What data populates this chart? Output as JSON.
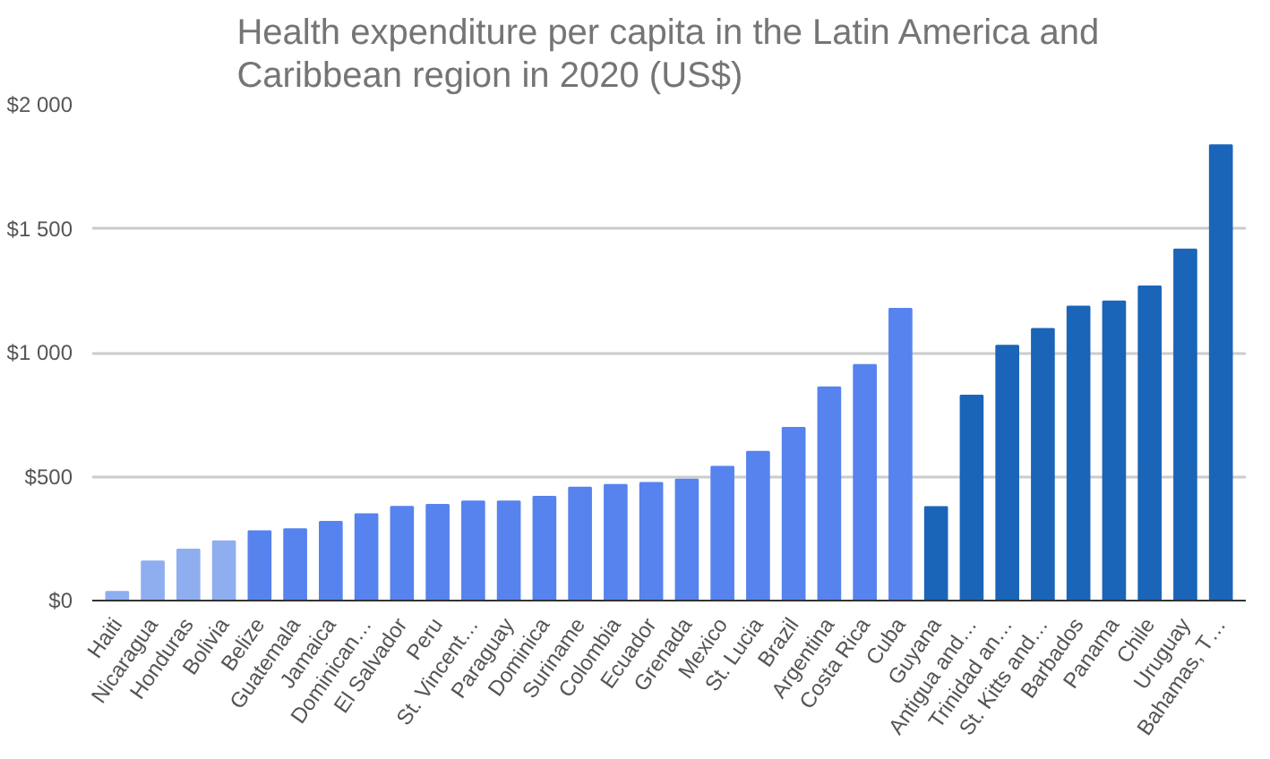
{
  "chart_data": {
    "type": "bar",
    "title": "Health expenditure per capita in the Latin America and Caribbean region in 2020 (US$)",
    "categories": [
      "Haiti",
      "Nicaragua",
      "Honduras",
      "Bolivia",
      "Belize",
      "Guatemala",
      "Jamaica",
      "Dominican…",
      "El Salvador",
      "Peru",
      "St. Vincent…",
      "Paraguay",
      "Dominica",
      "Suriname",
      "Colombia",
      "Ecuador",
      "Grenada",
      "Mexico",
      "St. Lucia",
      "Brazil",
      "Argentina",
      "Costa Rica",
      "Cuba",
      "Guyana",
      "Antigua and…",
      "Trinidad an…",
      "St. Kitts and…",
      "Barbados",
      "Panama",
      "Chile",
      "Uruguay",
      "Bahamas, T…"
    ],
    "values": [
      35,
      158,
      206,
      239,
      280,
      288,
      318,
      348,
      378,
      386,
      400,
      400,
      419,
      456,
      467,
      475,
      488,
      540,
      600,
      697,
      860,
      950,
      1177,
      377,
      827,
      1028,
      1096,
      1186,
      1207,
      1267,
      1416,
      1837
    ],
    "colors": [
      "#8eaef0",
      "#8eaef0",
      "#8eaef0",
      "#8eaef0",
      "#5683ee",
      "#5683ee",
      "#5683ee",
      "#5683ee",
      "#5683ee",
      "#5683ee",
      "#5683ee",
      "#5683ee",
      "#5683ee",
      "#5683ee",
      "#5683ee",
      "#5683ee",
      "#5683ee",
      "#5683ee",
      "#5683ee",
      "#5683ee",
      "#5683ee",
      "#5683ee",
      "#5683ee",
      "#1b65b9",
      "#1b65b9",
      "#1b65b9",
      "#1b65b9",
      "#1b65b9",
      "#1b65b9",
      "#1b65b9",
      "#1b65b9",
      "#1b65b9"
    ],
    "ylim": [
      0,
      2000
    ],
    "yticks": [
      {
        "value": 0,
        "label": "$0"
      },
      {
        "value": 500,
        "label": "$500"
      },
      {
        "value": 1000,
        "label": "$1 000"
      },
      {
        "value": 1500,
        "label": "$1 500"
      },
      {
        "value": 2000,
        "label": "$2 000"
      }
    ],
    "grid": "y"
  }
}
